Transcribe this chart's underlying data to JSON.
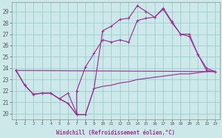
{
  "xlabel": "Windchill (Refroidissement éolien,°C)",
  "background_color": "#cce8e8",
  "line_color": "#993399",
  "grid_color": "#99cccc",
  "xlim": [
    -0.5,
    23.5
  ],
  "ylim": [
    19.5,
    29.8
  ],
  "yticks": [
    20,
    21,
    22,
    23,
    24,
    25,
    26,
    27,
    28,
    29
  ],
  "xticks": [
    0,
    1,
    2,
    3,
    4,
    5,
    6,
    7,
    8,
    9,
    10,
    11,
    12,
    13,
    14,
    15,
    16,
    17,
    18,
    19,
    20,
    21,
    22,
    23
  ],
  "line1_x": [
    0,
    1,
    2,
    3,
    4,
    5,
    6,
    7,
    8,
    9,
    10,
    11,
    12,
    13,
    14,
    15,
    16,
    17,
    18,
    19,
    20,
    21,
    22,
    23
  ],
  "line1_y": [
    23.8,
    22.5,
    21.7,
    21.8,
    21.8,
    21.3,
    20.9,
    19.9,
    19.9,
    22.2,
    22.4,
    22.5,
    22.7,
    22.8,
    23.0,
    23.1,
    23.2,
    23.3,
    23.4,
    23.5,
    23.5,
    23.6,
    23.7,
    23.7
  ],
  "line2_x": [
    0,
    1,
    2,
    3,
    4,
    5,
    6,
    7,
    7,
    8,
    9,
    10,
    11,
    12,
    13,
    14,
    15,
    16,
    17,
    18,
    19,
    20,
    21,
    22,
    23
  ],
  "line2_y": [
    23.8,
    22.5,
    21.7,
    21.8,
    21.8,
    21.3,
    21.8,
    20.0,
    22.0,
    24.1,
    25.3,
    26.5,
    26.3,
    26.5,
    26.3,
    28.2,
    28.4,
    28.5,
    29.2,
    28.0,
    27.0,
    26.8,
    25.2,
    23.8,
    23.7
  ],
  "line3_x": [
    0,
    1,
    2,
    3,
    4,
    5,
    6,
    7,
    8,
    9,
    10,
    11,
    12,
    13,
    14,
    15,
    16,
    17,
    18,
    19,
    20,
    21,
    22,
    23
  ],
  "line3_y": [
    23.8,
    22.5,
    21.7,
    21.8,
    21.8,
    21.3,
    20.9,
    19.9,
    19.9,
    22.2,
    27.3,
    27.7,
    28.3,
    28.4,
    29.5,
    29.0,
    28.5,
    29.3,
    28.1,
    27.0,
    27.0,
    25.2,
    24.0,
    23.7
  ],
  "line4_x": [
    0,
    23
  ],
  "line4_y": [
    23.8,
    23.7
  ]
}
